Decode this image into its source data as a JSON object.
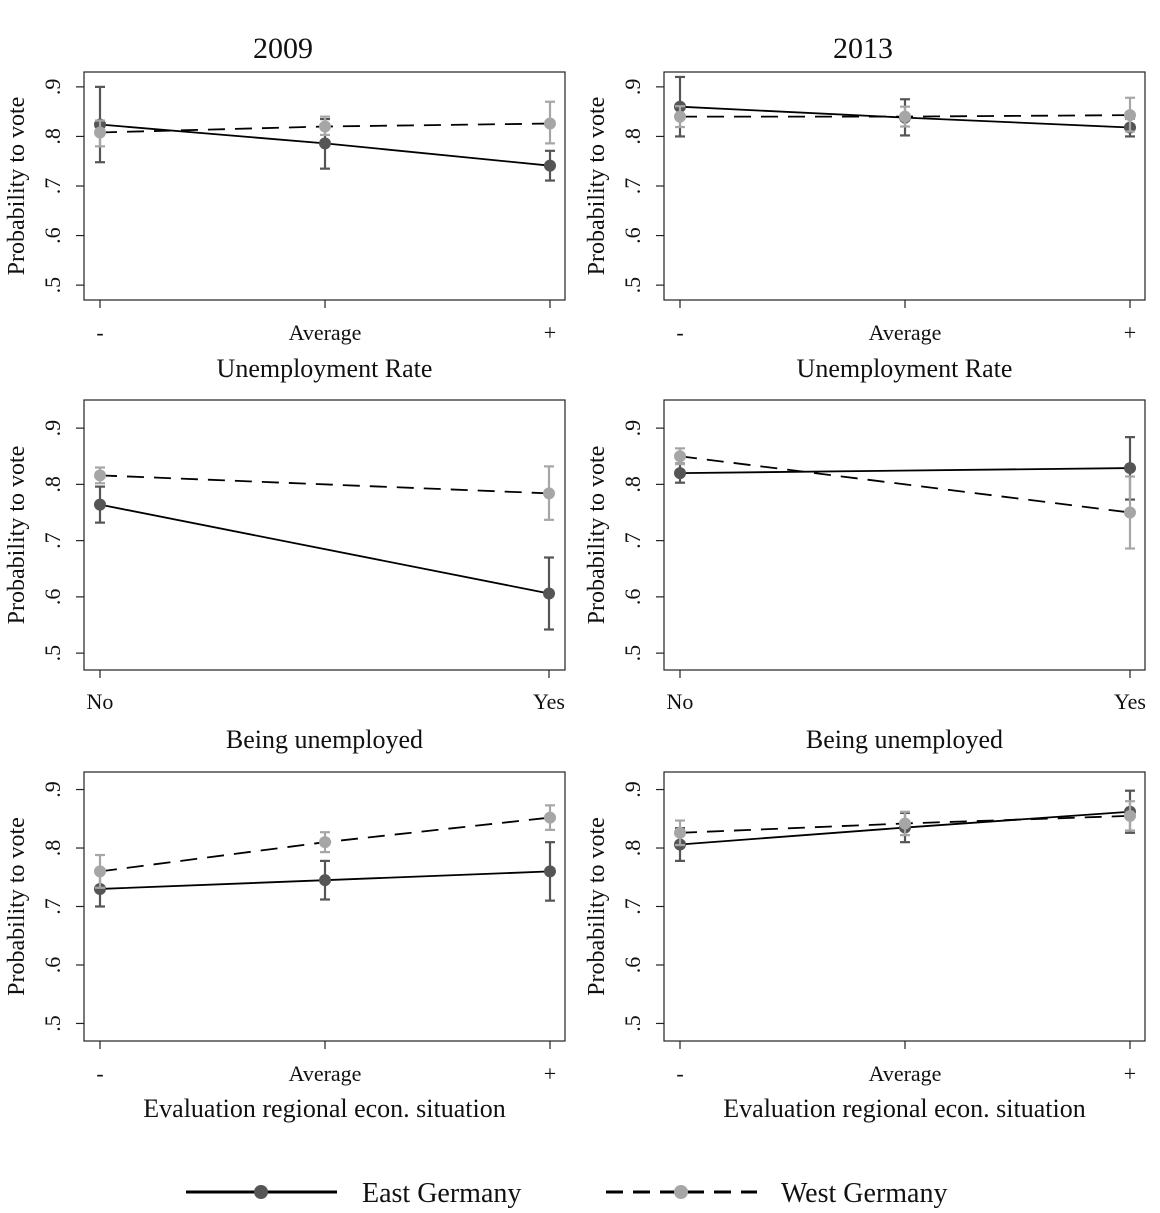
{
  "columns": [
    "2009",
    "2013"
  ],
  "legend": [
    {
      "label": "East Germany",
      "style": "solid",
      "marker_color": "#555555"
    },
    {
      "label": "West Germany",
      "style": "dashed",
      "marker_color": "#a6a6a6"
    }
  ],
  "colors": {
    "east_marker": "#555555",
    "west_marker": "#a6a6a6",
    "line": "#000000",
    "frame": "#222222"
  },
  "chart_data": [
    {
      "type": "line",
      "panel": "2009-unemployment-rate",
      "title": "2009",
      "xlabel": "Unemployment Rate",
      "ylabel": "Probability to vote",
      "categories": [
        "-",
        "Average",
        "+"
      ],
      "yticks": [
        ".5",
        ".6",
        ".7",
        ".8",
        ".9"
      ],
      "ylim": [
        0.47,
        0.93
      ],
      "grid": false,
      "series": [
        {
          "name": "East Germany",
          "values": [
            0.824,
            0.786,
            0.741
          ],
          "ci_low": [
            0.748,
            0.735,
            0.711
          ],
          "ci_high": [
            0.9,
            0.835,
            0.771
          ]
        },
        {
          "name": "West Germany",
          "values": [
            0.808,
            0.82,
            0.826
          ],
          "ci_low": [
            0.78,
            0.803,
            0.786
          ],
          "ci_high": [
            0.832,
            0.84,
            0.87
          ]
        }
      ]
    },
    {
      "type": "line",
      "panel": "2013-unemployment-rate",
      "title": "2013",
      "xlabel": "Unemployment Rate",
      "ylabel": "Probability to vote",
      "categories": [
        "-",
        "Average",
        "+"
      ],
      "yticks": [
        ".5",
        ".6",
        ".7",
        ".8",
        ".9"
      ],
      "ylim": [
        0.47,
        0.93
      ],
      "grid": false,
      "series": [
        {
          "name": "East Germany",
          "values": [
            0.86,
            0.838,
            0.818
          ],
          "ci_low": [
            0.8,
            0.802,
            0.8
          ],
          "ci_high": [
            0.92,
            0.875,
            0.836
          ]
        },
        {
          "name": "West Germany",
          "values": [
            0.84,
            0.84,
            0.843
          ],
          "ci_low": [
            0.819,
            0.82,
            0.81
          ],
          "ci_high": [
            0.861,
            0.86,
            0.878
          ]
        }
      ]
    },
    {
      "type": "line",
      "panel": "2009-being-unemployed",
      "title": "",
      "xlabel": "Being unemployed",
      "ylabel": "Probability to vote",
      "categories": [
        "No",
        "Yes"
      ],
      "yticks": [
        ".5",
        ".6",
        ".7",
        ".8",
        ".9"
      ],
      "ylim": [
        0.47,
        0.95
      ],
      "grid": false,
      "series": [
        {
          "name": "East Germany",
          "values": [
            0.764,
            0.606
          ],
          "ci_low": [
            0.732,
            0.542
          ],
          "ci_high": [
            0.796,
            0.67
          ]
        },
        {
          "name": "West Germany",
          "values": [
            0.816,
            0.784
          ],
          "ci_low": [
            0.802,
            0.737
          ],
          "ci_high": [
            0.83,
            0.832
          ]
        }
      ]
    },
    {
      "type": "line",
      "panel": "2013-being-unemployed",
      "title": "",
      "xlabel": "Being unemployed",
      "ylabel": "Probability to vote",
      "categories": [
        "No",
        "Yes"
      ],
      "yticks": [
        ".5",
        ".6",
        ".7",
        ".8",
        ".9"
      ],
      "ylim": [
        0.47,
        0.95
      ],
      "grid": false,
      "series": [
        {
          "name": "East Germany",
          "values": [
            0.82,
            0.829
          ],
          "ci_low": [
            0.803,
            0.773
          ],
          "ci_high": [
            0.837,
            0.884
          ]
        },
        {
          "name": "West Germany",
          "values": [
            0.85,
            0.75
          ],
          "ci_low": [
            0.836,
            0.686
          ],
          "ci_high": [
            0.864,
            0.814
          ]
        }
      ]
    },
    {
      "type": "line",
      "panel": "2009-evaluation-regional",
      "title": "",
      "xlabel": "Evaluation regional econ. situation",
      "ylabel": "Probability to vote",
      "categories": [
        "-",
        "Average",
        "+"
      ],
      "yticks": [
        ".5",
        ".6",
        ".7",
        ".8",
        ".9"
      ],
      "ylim": [
        0.47,
        0.93
      ],
      "grid": false,
      "series": [
        {
          "name": "East Germany",
          "values": [
            0.73,
            0.745,
            0.76
          ],
          "ci_low": [
            0.7,
            0.712,
            0.71
          ],
          "ci_high": [
            0.76,
            0.778,
            0.81
          ]
        },
        {
          "name": "West Germany",
          "values": [
            0.76,
            0.81,
            0.852
          ],
          "ci_low": [
            0.732,
            0.793,
            0.831
          ],
          "ci_high": [
            0.788,
            0.827,
            0.873
          ]
        }
      ]
    },
    {
      "type": "line",
      "panel": "2013-evaluation-regional",
      "title": "",
      "xlabel": "Evaluation regional econ. situation",
      "ylabel": "Probability to vote",
      "categories": [
        "-",
        "Average",
        "+"
      ],
      "yticks": [
        ".5",
        ".6",
        ".7",
        ".8",
        ".9"
      ],
      "ylim": [
        0.47,
        0.93
      ],
      "grid": false,
      "series": [
        {
          "name": "East Germany",
          "values": [
            0.806,
            0.835,
            0.862
          ],
          "ci_low": [
            0.778,
            0.81,
            0.826
          ],
          "ci_high": [
            0.834,
            0.86,
            0.898
          ]
        },
        {
          "name": "West Germany",
          "values": [
            0.826,
            0.842,
            0.855
          ],
          "ci_low": [
            0.805,
            0.822,
            0.83
          ],
          "ci_high": [
            0.847,
            0.862,
            0.88
          ]
        }
      ]
    }
  ]
}
